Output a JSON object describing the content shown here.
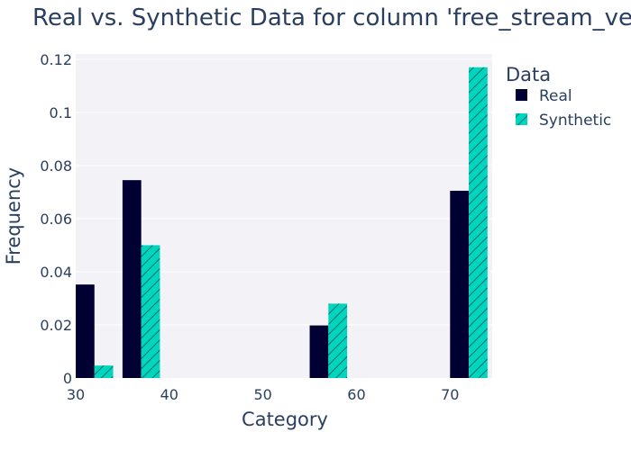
{
  "chart_data": {
    "type": "bar",
    "title": "Real vs. Synthetic Data for column 'free_stream_velocity'",
    "xlabel": "Category",
    "ylabel": "Frequency",
    "xlim": [
      30,
      74.5
    ],
    "ylim": [
      0,
      0.122
    ],
    "x_ticks": [
      30,
      40,
      50,
      60,
      70
    ],
    "x_tick_labels": [
      "30",
      "40",
      "50",
      "60",
      "70"
    ],
    "y_ticks": [
      0,
      0.02,
      0.04,
      0.06,
      0.08,
      0.1,
      0.12
    ],
    "y_tick_labels": [
      "0",
      "0.02",
      "0.04",
      "0.06",
      "0.08",
      "0.1",
      "0.12"
    ],
    "bin_width": 4,
    "bin_centers": [
      32,
      37,
      57,
      72
    ],
    "legend_title": "Data",
    "legend_position": "right",
    "grid": true,
    "series": [
      {
        "name": "Real",
        "color": "#000033",
        "pattern": "none",
        "values": [
          0.0352,
          0.0745,
          0.0198,
          0.0705
        ]
      },
      {
        "name": "Synthetic",
        "color": "#00d5c0",
        "pattern": "diagonal-hatch",
        "values": [
          0.0047,
          0.05,
          0.028,
          0.117
        ]
      }
    ]
  }
}
